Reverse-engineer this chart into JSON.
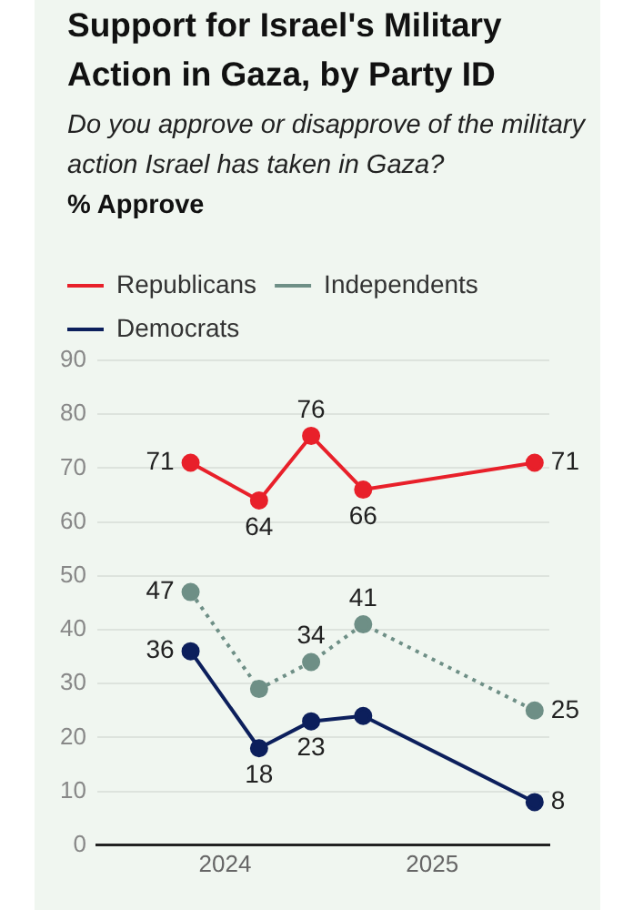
{
  "chart_data": {
    "type": "line",
    "title": "Support for Israel's Military Action in Gaza, by Party ID",
    "subtitle": "Do you approve or disapprove of the military action Israel has taken in Gaza?",
    "annotations": [
      "% Approve"
    ],
    "x": [
      "2023-11",
      "2024-03",
      "2024-06",
      "2024-09",
      "2025-07"
    ],
    "series": [
      {
        "name": "Republicans",
        "color": "#e8202a",
        "values": [
          71,
          64,
          76,
          66,
          71
        ],
        "value_labels": [
          "71",
          "64",
          "76",
          "66",
          "71"
        ]
      },
      {
        "name": "Independents",
        "color": "#6e8f86",
        "line_style": "dotted",
        "values": [
          47,
          29,
          34,
          41,
          25
        ],
        "value_labels": [
          "47",
          null,
          "34",
          "41",
          "25"
        ]
      },
      {
        "name": "Democrats",
        "color": "#0c1f5c",
        "values": [
          36,
          18,
          23,
          24,
          8
        ],
        "value_labels": [
          "36",
          "18",
          "23",
          null,
          "8"
        ]
      }
    ],
    "xlim": [
      "2023-05-20",
      "2025-07-27"
    ],
    "xticks": [
      "2024",
      "2025"
    ],
    "ylim": [
      0,
      90
    ],
    "yticks": [
      0,
      10,
      20,
      30,
      40,
      50,
      60,
      70,
      80,
      90
    ],
    "grid": "y",
    "legend": "top left",
    "marker": "circle"
  }
}
